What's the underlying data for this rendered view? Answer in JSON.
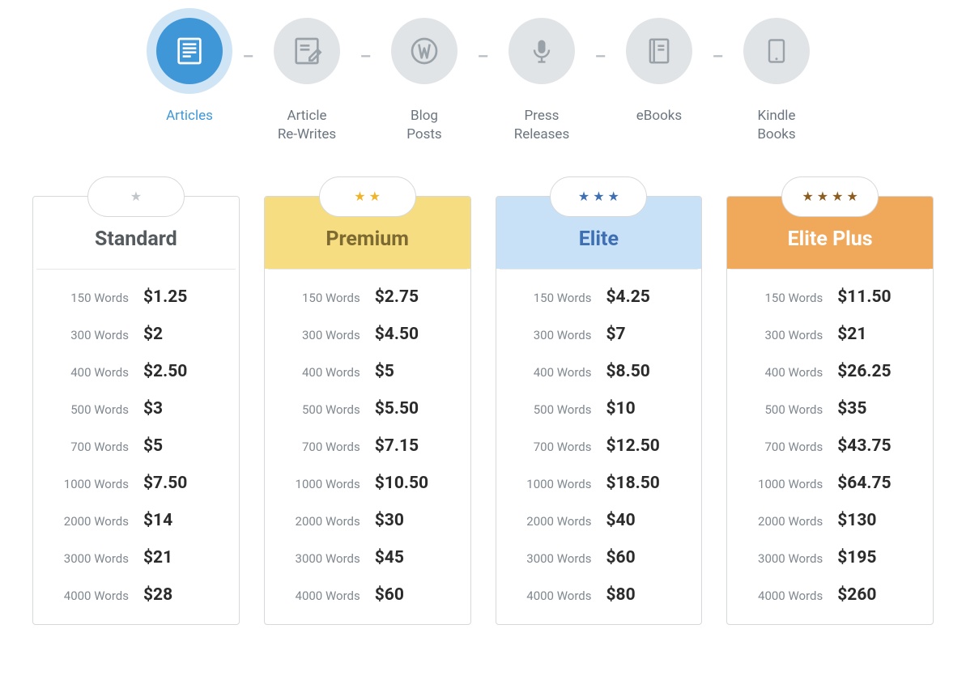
{
  "colors": {
    "accent_blue": "#3f97d8",
    "circle_grey": "#e1e4e7",
    "icon_grey": "#9aa2a9",
    "text_grey": "#6c7680",
    "plan_border": "#d6d8da",
    "plan_text": "#555a5f"
  },
  "categories": [
    {
      "id": "articles",
      "label": "Articles",
      "active": true
    },
    {
      "id": "rewrites",
      "label": "Article\nRe-Writes",
      "active": false
    },
    {
      "id": "blog",
      "label": "Blog\nPosts",
      "active": false
    },
    {
      "id": "press",
      "label": "Press\nReleases",
      "active": false
    },
    {
      "id": "ebooks",
      "label": "eBooks",
      "active": false
    },
    {
      "id": "kindle",
      "label": "Kindle\nBooks",
      "active": false
    }
  ],
  "word_tiers": [
    "150 Words",
    "300 Words",
    "400 Words",
    "500 Words",
    "700 Words",
    "1000 Words",
    "2000 Words",
    "3000 Words",
    "4000 Words"
  ],
  "plans": [
    {
      "id": "standard",
      "name": "Standard",
      "stars": 1,
      "star_color": "#c2c6ca",
      "head_bg": "#ffffff",
      "head_text": "#555a5f",
      "prices": [
        "$1.25",
        "$2",
        "$2.50",
        "$3",
        "$5",
        "$7.50",
        "$14",
        "$21",
        "$28"
      ]
    },
    {
      "id": "premium",
      "name": "Premium",
      "stars": 2,
      "star_color": "#f0b42b",
      "head_bg": "#f6dd82",
      "head_text": "#7d6a30",
      "prices": [
        "$2.75",
        "$4.50",
        "$5",
        "$5.50",
        "$7.15",
        "$10.50",
        "$30",
        "$45",
        "$60"
      ]
    },
    {
      "id": "elite",
      "name": "Elite",
      "stars": 3,
      "star_color": "#3f6fb3",
      "head_bg": "#c8e1f6",
      "head_text": "#3f6fb3",
      "prices": [
        "$4.25",
        "$7",
        "$8.50",
        "$10",
        "$12.50",
        "$18.50",
        "$40",
        "$60",
        "$80"
      ]
    },
    {
      "id": "eliteplus",
      "name": "Elite Plus",
      "stars": 4,
      "star_color": "#8d5d20",
      "head_bg": "#f0a85a",
      "head_text": "#ffffff",
      "prices": [
        "$11.50",
        "$21",
        "$26.25",
        "$35",
        "$43.75",
        "$64.75",
        "$130",
        "$195",
        "$260"
      ]
    }
  ]
}
